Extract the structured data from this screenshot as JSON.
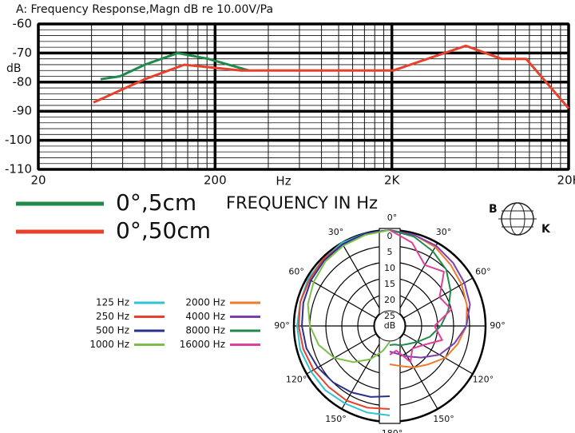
{
  "chart_data": [
    {
      "type": "line",
      "title": "A: Frequency Response,Magn dB re 10.00V/Pa",
      "ylabel": "dB",
      "xlabel": "Hz",
      "annotation": "FREQUENCY IN Hz",
      "log_x": true,
      "xlim": [
        20,
        20000
      ],
      "ylim": [
        -110,
        -60
      ],
      "xticks": [
        20,
        200,
        {
          "value": 2000,
          "label": "2K"
        },
        {
          "value": 20000,
          "label": "20K"
        }
      ],
      "yticks": [
        -60,
        -70,
        -80,
        -90,
        -100,
        -110
      ],
      "grid": true,
      "series": [
        {
          "name": "0°,5cm",
          "color": "#1f8a4c",
          "x": [
            45,
            58,
            80,
            123,
            183,
            310
          ],
          "values": [
            -79,
            -78,
            -74,
            -70,
            -72,
            -76
          ]
        },
        {
          "name": "0°,50cm",
          "color": "#e8402a",
          "x": [
            41,
            80,
            134,
            280,
            2040,
            5240,
            8350,
            11500,
            20000
          ],
          "values": [
            -87,
            -79,
            -74,
            -76,
            -76,
            -67.5,
            -72,
            -72,
            -89
          ]
        }
      ]
    },
    {
      "type": "polar",
      "r_label": "dB",
      "rlim": [
        25,
        0
      ],
      "rticks": [
        0,
        5,
        10,
        15,
        20,
        25
      ],
      "angles": [
        0,
        15,
        30,
        45,
        60,
        75,
        90,
        105,
        120,
        135,
        150,
        165,
        180
      ],
      "angle_ticks": [
        {
          "value": 0,
          "label": "0°"
        },
        {
          "value": 30,
          "label": "30°"
        },
        {
          "value": 60,
          "label": "60°"
        },
        {
          "value": 90,
          "label": "90°"
        },
        {
          "value": 120,
          "label": "120°"
        },
        {
          "value": 150,
          "label": "150°"
        },
        {
          "value": 180,
          "label": "180°"
        }
      ],
      "series": [
        {
          "name": "125 Hz",
          "color": "#2ec4d6",
          "side": "left",
          "values": [
            0,
            0,
            0,
            0.5,
            0.5,
            1,
            1,
            1,
            1.5,
            1.5,
            2,
            2,
            2
          ]
        },
        {
          "name": "250 Hz",
          "color": "#e8402a",
          "side": "left",
          "values": [
            0,
            0,
            0.5,
            0.5,
            1,
            1,
            1.5,
            2,
            2.5,
            3,
            3,
            3.5,
            4
          ]
        },
        {
          "name": "500 Hz",
          "color": "#2b2f8f",
          "side": "left",
          "values": [
            0,
            0,
            0.5,
            1,
            1.5,
            2,
            2.5,
            3,
            4,
            5,
            6,
            7,
            8
          ]
        },
        {
          "name": "1000 Hz",
          "color": "#7bbf4a",
          "side": "left",
          "values": [
            0,
            0.5,
            1,
            1.5,
            2.5,
            3.5,
            5,
            7,
            10,
            14,
            18,
            22,
            25
          ]
        },
        {
          "name": "2000 Hz",
          "color": "#f07a2a",
          "side": "right",
          "values": [
            0,
            0.5,
            1.5,
            3,
            4,
            5,
            6,
            8,
            10,
            13,
            15,
            17,
            18
          ]
        },
        {
          "name": "4000 Hz",
          "color": "#7a3fb0",
          "side": "right",
          "values": [
            0,
            0.5,
            1,
            2,
            3,
            4,
            6,
            9,
            12,
            16,
            19,
            21,
            22
          ]
        },
        {
          "name": "8000 Hz",
          "color": "#1f8a4c",
          "side": "right",
          "values": [
            0,
            1,
            3,
            5,
            8,
            11,
            14,
            17,
            20,
            22,
            23,
            24,
            24
          ]
        },
        {
          "name": "16000 Hz",
          "color": "#e0409a",
          "side": "right",
          "values": [
            0,
            3,
            8,
            6,
            12,
            10,
            16,
            13,
            18,
            20,
            17,
            22,
            21
          ]
        }
      ]
    }
  ],
  "logo": {
    "left": "B",
    "right": "K"
  }
}
